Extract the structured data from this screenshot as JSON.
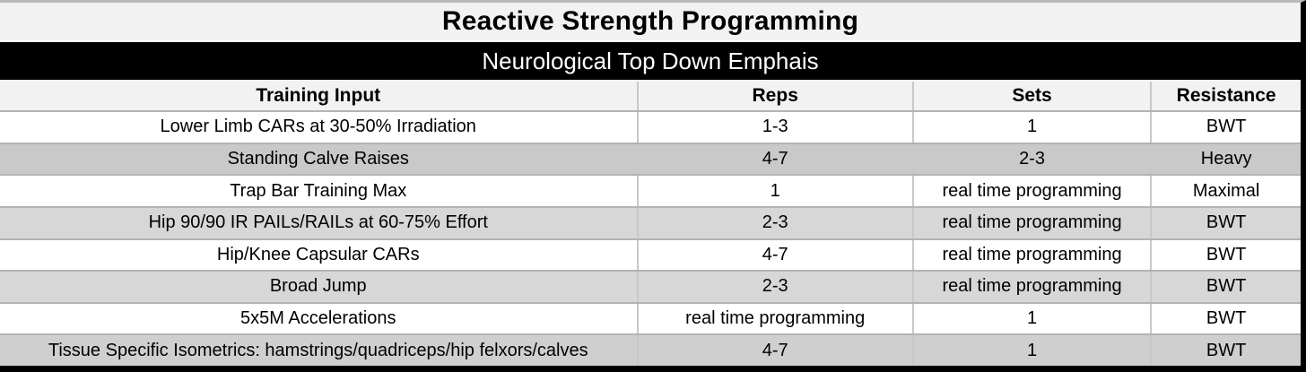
{
  "title": "Reactive Strength Programming",
  "section_header": "Neurological Top Down Emphais",
  "table": {
    "columns": [
      "Training Input",
      "Reps",
      "Sets",
      "Resistance"
    ],
    "rows": [
      {
        "training_input": "Lower Limb CARs at 30-50% Irradiation",
        "reps": "1-3",
        "sets": "1",
        "resistance": "BWT"
      },
      {
        "training_input": "Standing Calve Raises",
        "reps": "4-7",
        "sets": "2-3",
        "resistance": "Heavy"
      },
      {
        "training_input": "Trap Bar Training Max",
        "reps": "1",
        "sets": "real time programming",
        "resistance": "Maximal"
      },
      {
        "training_input": "Hip 90/90 IR PAILs/RAILs at 60-75% Effort",
        "reps": "2-3",
        "sets": "real time programming",
        "resistance": "BWT"
      },
      {
        "training_input": "Hip/Knee Capsular CARs",
        "reps": "4-7",
        "sets": "real time programming",
        "resistance": "BWT"
      },
      {
        "training_input": "Broad Jump",
        "reps": "2-3",
        "sets": "real time programming",
        "resistance": "BWT"
      },
      {
        "training_input": "5x5M Accelerations",
        "reps": "real time programming",
        "sets": "1",
        "resistance": "BWT"
      },
      {
        "training_input": "Tissue Specific Isometrics: hamstrings/quadriceps/hip felxors/calves",
        "reps": "4-7",
        "sets": "1",
        "resistance": "BWT"
      }
    ]
  },
  "palette": {
    "title_bg": "#f2f2f2",
    "section_header_bg": "#000000",
    "section_header_text": "#ffffff",
    "header_row_bg": "#f2f2f2",
    "row_white": "#ffffff",
    "row_gray_dark": "#c9c9c9",
    "row_gray": "#d7d7d7",
    "row_gray_medium": "#cfcfcf",
    "grid_line": "#b3b3b3",
    "outer_border": "#000000"
  }
}
